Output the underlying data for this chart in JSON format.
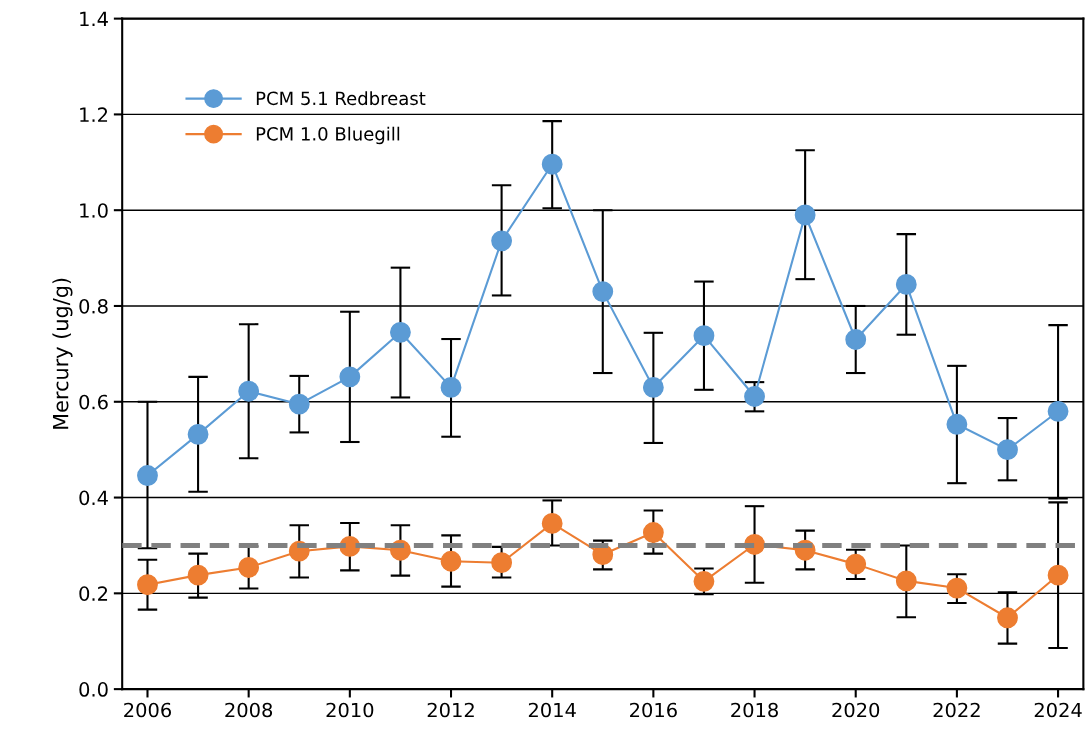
{
  "chart_data": {
    "type": "line",
    "ylabel": "Mercury (ug/g)",
    "x": [
      2006,
      2007,
      2008,
      2009,
      2010,
      2011,
      2012,
      2013,
      2014,
      2015,
      2016,
      2017,
      2018,
      2019,
      2020,
      2021,
      2022,
      2023,
      2024
    ],
    "series": [
      {
        "name": "PCM 5.1 Redbreast",
        "color": "#5b9bd5",
        "values": [
          0.446,
          0.532,
          0.622,
          0.595,
          0.652,
          0.745,
          0.63,
          0.936,
          1.096,
          0.83,
          0.63,
          0.738,
          0.611,
          0.99,
          0.73,
          0.845,
          0.553,
          0.5,
          0.58
        ],
        "errors": [
          [
            0.294,
            0.6
          ],
          [
            0.412,
            0.652
          ],
          [
            0.482,
            0.762
          ],
          [
            0.536,
            0.654
          ],
          [
            0.516,
            0.788
          ],
          [
            0.609,
            0.88
          ],
          [
            0.527,
            0.731
          ],
          [
            0.822,
            1.052
          ],
          [
            1.004,
            1.186
          ],
          [
            0.66,
            1.0
          ],
          [
            0.514,
            0.744
          ],
          [
            0.625,
            0.851
          ],
          [
            0.58,
            0.641
          ],
          [
            0.856,
            1.125
          ],
          [
            0.66,
            0.8
          ],
          [
            0.74,
            0.95
          ],
          [
            0.43,
            0.675
          ],
          [
            0.436,
            0.566
          ],
          [
            0.398,
            0.76
          ]
        ]
      },
      {
        "name": "PCM 1.0 Bluegill",
        "color": "#ed7d31",
        "values": [
          0.218,
          0.238,
          0.254,
          0.288,
          0.298,
          0.29,
          0.267,
          0.264,
          0.346,
          0.281,
          0.327,
          0.225,
          0.302,
          0.29,
          0.261,
          0.226,
          0.211,
          0.149,
          0.238
        ],
        "errors": [
          [
            0.166,
            0.27
          ],
          [
            0.191,
            0.283
          ],
          [
            0.21,
            0.298
          ],
          [
            0.233,
            0.342
          ],
          [
            0.248,
            0.347
          ],
          [
            0.237,
            0.342
          ],
          [
            0.214,
            0.321
          ],
          [
            0.233,
            0.297
          ],
          [
            0.3,
            0.394
          ],
          [
            0.25,
            0.31
          ],
          [
            0.283,
            0.373
          ],
          [
            0.198,
            0.252
          ],
          [
            0.222,
            0.382
          ],
          [
            0.25,
            0.331
          ],
          [
            0.23,
            0.291
          ],
          [
            0.15,
            0.3
          ],
          [
            0.18,
            0.24
          ],
          [
            0.095,
            0.202
          ],
          [
            0.086,
            0.39
          ]
        ]
      }
    ],
    "xlim": [
      2005.5,
      2024.5
    ],
    "xticks": [
      2006,
      2008,
      2010,
      2012,
      2014,
      2016,
      2018,
      2020,
      2022,
      2024
    ],
    "ylim": [
      0,
      1.4
    ],
    "yticks": [
      {
        "value": 0,
        "label": "0.0"
      },
      {
        "value": 0.2,
        "label": "0.2"
      },
      {
        "value": 0.4,
        "label": "0.4"
      },
      {
        "value": 0.6,
        "label": "0.6"
      },
      {
        "value": 0.8,
        "label": "0.8"
      },
      {
        "value": 1.0,
        "label": "1.0"
      },
      {
        "value": 1.2,
        "label": "1.2"
      },
      {
        "value": 1.4,
        "label": "1.4"
      }
    ],
    "ref_lines": [
      {
        "axis": "y",
        "value": 0.3,
        "color": "#808080",
        "line_style": "dashed"
      }
    ],
    "grid": "y",
    "legend": "top left",
    "marker": "circle",
    "line_style": "solid"
  }
}
